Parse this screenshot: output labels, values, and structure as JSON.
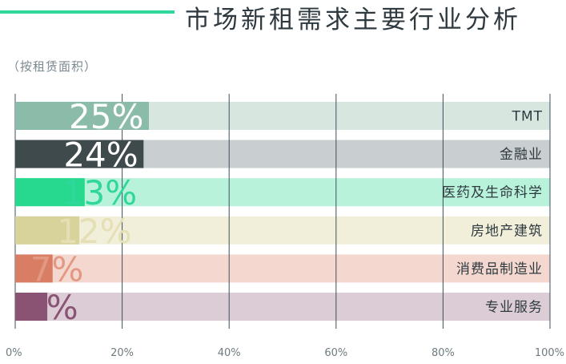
{
  "header": {
    "title": "市场新租需求主要行业分析",
    "subtitle": "（按租赁面积）"
  },
  "chart_data": {
    "type": "bar",
    "orientation": "horizontal",
    "categories": [
      "TMT",
      "金融业",
      "医药及生命科学",
      "房地产建筑",
      "消费品制造业",
      "专业服务"
    ],
    "values": [
      25,
      24,
      13,
      12,
      7,
      6
    ],
    "value_labels": [
      "25%",
      "24%",
      "13%",
      "12%",
      "7%",
      "6%"
    ],
    "bar_colors": [
      "#8bbcaa",
      "#3f4a4d",
      "#27d98f",
      "#d8d39b",
      "#d97d64",
      "#8a5273"
    ],
    "track_colors": [
      "#d8e6e0",
      "#c9cfd0",
      "#b9f2da",
      "#f1efda",
      "#f4d8cf",
      "#dcccd6"
    ],
    "pct_label_colors": [
      "#ffffff",
      "#ffffff",
      "#2fd89a",
      "#e4dfb4",
      "#e29883",
      "#8a5273"
    ],
    "xlim": [
      0,
      100
    ],
    "x_ticks": [
      0,
      20,
      40,
      60,
      80,
      100
    ],
    "x_tick_labels": [
      "0%",
      "20%",
      "40%",
      "60%",
      "80%",
      "100%"
    ],
    "grid": true,
    "gridline_color": "#3f4f5a",
    "accent": "#2fd89a"
  }
}
